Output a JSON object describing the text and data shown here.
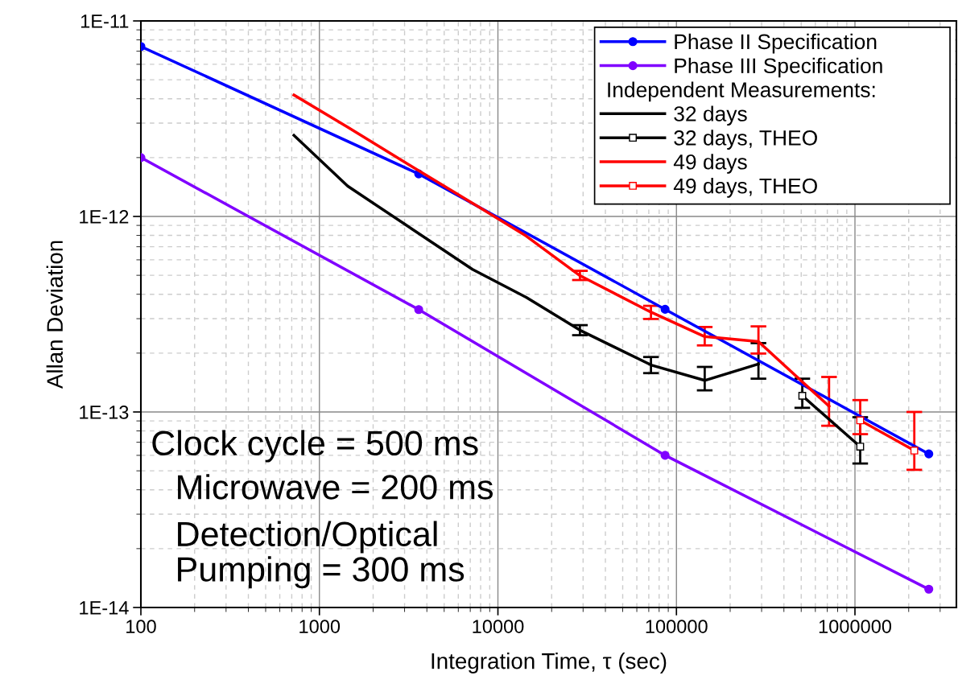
{
  "chart_data": {
    "type": "line",
    "xlabel": "Integration Time, τ (sec)",
    "ylabel": "Allan Deviation",
    "log": "xy",
    "grid": true,
    "legend": "top right",
    "xlim": [
      100,
      3700000
    ],
    "xticks": [
      100,
      1000,
      10000,
      100000,
      1000000
    ],
    "ylim": [
      1e-14,
      1e-11
    ],
    "yticks": [
      {
        "value": 1e-14,
        "label": "1E-14"
      },
      {
        "value": 1e-13,
        "label": "1E-13"
      },
      {
        "value": 1e-12,
        "label": "1E-12"
      },
      {
        "value": 1e-11,
        "label": "1E-11"
      }
    ],
    "annotations": [
      "Independent Measurements:",
      "Clock cycle = 500 ms",
      "Microwave = 200 ms",
      "Detection/Optical",
      "Pumping = 300 ms"
    ],
    "series": [
      {
        "name": "Phase II Specification",
        "color": "#0000ff",
        "marker": "circle",
        "x": [
          100,
          3600,
          86400,
          2592000
        ],
        "values": [
          7.4e-12,
          1.65e-12,
          3.35e-13,
          6.1e-14
        ]
      },
      {
        "name": "Phase III Specification",
        "color": "#8000ff",
        "marker": "circle",
        "x": [
          100,
          3600,
          86400,
          2592000
        ],
        "values": [
          2e-12,
          3.34e-13,
          6e-14,
          1.24e-14
        ]
      },
      {
        "name": "32 days",
        "color": "#000000",
        "marker": "none",
        "x": [
          720,
          1440,
          7200,
          14400,
          28800,
          72000,
          144000,
          288000
        ],
        "values": [
          2.6e-12,
          1.43e-12,
          5.36e-13,
          3.86e-13,
          2.62e-13,
          1.74e-13,
          1.45e-13,
          1.76e-13
        ],
        "errors": [
          null,
          null,
          null,
          null,
          [
            2.47e-13,
            2.78e-13
          ],
          [
            1.58e-13,
            1.91e-13
          ],
          [
            1.29e-13,
            1.7e-13
          ],
          [
            1.48e-13,
            2.25e-13
          ]
        ]
      },
      {
        "name": "32 days, THEO",
        "color": "#000000",
        "marker": "square",
        "x": [
          507000,
          1070000
        ],
        "values": [
          1.21e-13,
          6.65e-14
        ],
        "errors": [
          [
            1.05e-13,
            1.48e-13
          ],
          [
            5.45e-14,
            9.4e-14
          ]
        ]
      },
      {
        "name": "49 days",
        "color": "#ff0000",
        "marker": "none",
        "x": [
          720,
          1440,
          2880,
          7200,
          14400,
          28800,
          72000,
          144000,
          288000,
          716000
        ],
        "values": [
          4.18e-12,
          2.86e-12,
          1.94e-12,
          1.17e-12,
          7.94e-13,
          4.98e-13,
          3.24e-13,
          2.43e-13,
          2.29e-13,
          1.07e-13
        ],
        "errors": [
          null,
          null,
          null,
          null,
          null,
          [
            4.73e-13,
            5.27e-13
          ],
          [
            2.99e-13,
            3.49e-13
          ],
          [
            2.19e-13,
            2.72e-13
          ],
          [
            1.99e-13,
            2.74e-13
          ],
          [
            8.5e-14,
            1.51e-13
          ]
        ]
      },
      {
        "name": "49 days, THEO",
        "color": "#ff0000",
        "marker": "square",
        "x": [
          1070000,
          2150000
        ],
        "values": [
          9.06e-14,
          6.35e-14
        ],
        "errors": [
          [
            7.7e-14,
            1.15e-13
          ],
          [
            5.06e-14,
            1e-13
          ]
        ]
      }
    ]
  }
}
